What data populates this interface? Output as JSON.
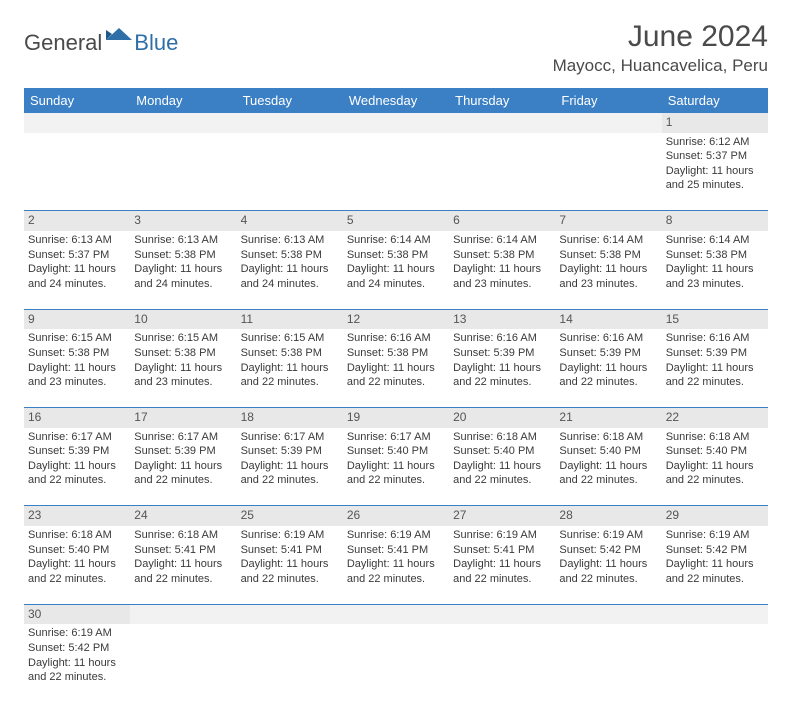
{
  "logo": {
    "general": "General",
    "blue": "Blue"
  },
  "title": "June 2024",
  "location": "Mayocc, Huancavelica, Peru",
  "colors": {
    "header_bg": "#3b7fc4",
    "header_fg": "#ffffff",
    "daynum_bg": "#e8e8e8",
    "empty_bg": "#f2f2f2",
    "rule": "#3b7fc4",
    "text": "#3a3a3a",
    "logo_blue": "#2f6fa8"
  },
  "day_headers": [
    "Sunday",
    "Monday",
    "Tuesday",
    "Wednesday",
    "Thursday",
    "Friday",
    "Saturday"
  ],
  "weeks": [
    {
      "nums": [
        "",
        "",
        "",
        "",
        "",
        "",
        "1"
      ],
      "cells": [
        "",
        "",
        "",
        "",
        "",
        "",
        "Sunrise: 6:12 AM\nSunset: 5:37 PM\nDaylight: 11 hours and 25 minutes."
      ]
    },
    {
      "nums": [
        "2",
        "3",
        "4",
        "5",
        "6",
        "7",
        "8"
      ],
      "cells": [
        "Sunrise: 6:13 AM\nSunset: 5:37 PM\nDaylight: 11 hours and 24 minutes.",
        "Sunrise: 6:13 AM\nSunset: 5:38 PM\nDaylight: 11 hours and 24 minutes.",
        "Sunrise: 6:13 AM\nSunset: 5:38 PM\nDaylight: 11 hours and 24 minutes.",
        "Sunrise: 6:14 AM\nSunset: 5:38 PM\nDaylight: 11 hours and 24 minutes.",
        "Sunrise: 6:14 AM\nSunset: 5:38 PM\nDaylight: 11 hours and 23 minutes.",
        "Sunrise: 6:14 AM\nSunset: 5:38 PM\nDaylight: 11 hours and 23 minutes.",
        "Sunrise: 6:14 AM\nSunset: 5:38 PM\nDaylight: 11 hours and 23 minutes."
      ]
    },
    {
      "nums": [
        "9",
        "10",
        "11",
        "12",
        "13",
        "14",
        "15"
      ],
      "cells": [
        "Sunrise: 6:15 AM\nSunset: 5:38 PM\nDaylight: 11 hours and 23 minutes.",
        "Sunrise: 6:15 AM\nSunset: 5:38 PM\nDaylight: 11 hours and 23 minutes.",
        "Sunrise: 6:15 AM\nSunset: 5:38 PM\nDaylight: 11 hours and 22 minutes.",
        "Sunrise: 6:16 AM\nSunset: 5:38 PM\nDaylight: 11 hours and 22 minutes.",
        "Sunrise: 6:16 AM\nSunset: 5:39 PM\nDaylight: 11 hours and 22 minutes.",
        "Sunrise: 6:16 AM\nSunset: 5:39 PM\nDaylight: 11 hours and 22 minutes.",
        "Sunrise: 6:16 AM\nSunset: 5:39 PM\nDaylight: 11 hours and 22 minutes."
      ]
    },
    {
      "nums": [
        "16",
        "17",
        "18",
        "19",
        "20",
        "21",
        "22"
      ],
      "cells": [
        "Sunrise: 6:17 AM\nSunset: 5:39 PM\nDaylight: 11 hours and 22 minutes.",
        "Sunrise: 6:17 AM\nSunset: 5:39 PM\nDaylight: 11 hours and 22 minutes.",
        "Sunrise: 6:17 AM\nSunset: 5:39 PM\nDaylight: 11 hours and 22 minutes.",
        "Sunrise: 6:17 AM\nSunset: 5:40 PM\nDaylight: 11 hours and 22 minutes.",
        "Sunrise: 6:18 AM\nSunset: 5:40 PM\nDaylight: 11 hours and 22 minutes.",
        "Sunrise: 6:18 AM\nSunset: 5:40 PM\nDaylight: 11 hours and 22 minutes.",
        "Sunrise: 6:18 AM\nSunset: 5:40 PM\nDaylight: 11 hours and 22 minutes."
      ]
    },
    {
      "nums": [
        "23",
        "24",
        "25",
        "26",
        "27",
        "28",
        "29"
      ],
      "cells": [
        "Sunrise: 6:18 AM\nSunset: 5:40 PM\nDaylight: 11 hours and 22 minutes.",
        "Sunrise: 6:18 AM\nSunset: 5:41 PM\nDaylight: 11 hours and 22 minutes.",
        "Sunrise: 6:19 AM\nSunset: 5:41 PM\nDaylight: 11 hours and 22 minutes.",
        "Sunrise: 6:19 AM\nSunset: 5:41 PM\nDaylight: 11 hours and 22 minutes.",
        "Sunrise: 6:19 AM\nSunset: 5:41 PM\nDaylight: 11 hours and 22 minutes.",
        "Sunrise: 6:19 AM\nSunset: 5:42 PM\nDaylight: 11 hours and 22 minutes.",
        "Sunrise: 6:19 AM\nSunset: 5:42 PM\nDaylight: 11 hours and 22 minutes."
      ]
    },
    {
      "nums": [
        "30",
        "",
        "",
        "",
        "",
        "",
        ""
      ],
      "cells": [
        "Sunrise: 6:19 AM\nSunset: 5:42 PM\nDaylight: 11 hours and 22 minutes.",
        "",
        "",
        "",
        "",
        "",
        ""
      ]
    }
  ]
}
